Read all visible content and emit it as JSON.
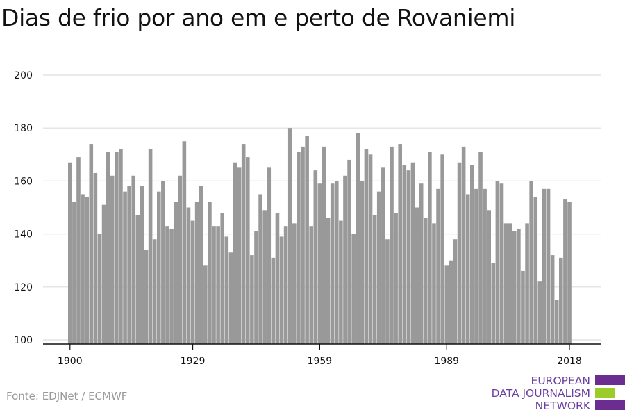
{
  "title": "Dias de frio por ano em e perto de Rovaniemi",
  "source": "Fonte: EDJNet / ECMWF",
  "brand": {
    "lines": [
      "EUROPEAN",
      "DATA JOURNALISM",
      "NETWORK"
    ],
    "colors": {
      "text": "#6b3fa0",
      "bar_purple": "#6b2d8f",
      "bar_green": "#9ccc2a"
    }
  },
  "colors": {
    "bars": "#999999",
    "grid": "#dddddd",
    "axis": "#111111"
  },
  "chart_data": {
    "type": "bar",
    "title": "Dias de frio por ano em e perto de Rovaniemi",
    "xlabel": "",
    "ylabel": "",
    "x": [
      1900,
      1901,
      1902,
      1903,
      1904,
      1905,
      1906,
      1907,
      1908,
      1909,
      1910,
      1911,
      1912,
      1913,
      1914,
      1915,
      1916,
      1917,
      1918,
      1919,
      1920,
      1921,
      1922,
      1923,
      1924,
      1925,
      1926,
      1927,
      1928,
      1929,
      1930,
      1931,
      1932,
      1933,
      1934,
      1935,
      1936,
      1937,
      1938,
      1939,
      1940,
      1941,
      1942,
      1943,
      1944,
      1945,
      1946,
      1947,
      1948,
      1949,
      1950,
      1951,
      1952,
      1953,
      1954,
      1955,
      1956,
      1957,
      1958,
      1959,
      1960,
      1961,
      1962,
      1963,
      1964,
      1965,
      1966,
      1967,
      1968,
      1969,
      1970,
      1971,
      1972,
      1973,
      1974,
      1975,
      1976,
      1977,
      1978,
      1979,
      1980,
      1981,
      1982,
      1983,
      1984,
      1985,
      1986,
      1987,
      1988,
      1989,
      1990,
      1991,
      1992,
      1993,
      1994,
      1995,
      1996,
      1997,
      1998,
      1999,
      2000,
      2001,
      2002,
      2003,
      2004,
      2005,
      2006,
      2007,
      2008,
      2009,
      2010,
      2011,
      2012,
      2013,
      2014,
      2015,
      2016,
      2017,
      2018
    ],
    "values": [
      167,
      152,
      169,
      155,
      154,
      174,
      163,
      140,
      151,
      171,
      162,
      171,
      172,
      156,
      158,
      162,
      147,
      158,
      134,
      172,
      138,
      156,
      160,
      143,
      142,
      152,
      162,
      175,
      150,
      145,
      152,
      158,
      128,
      152,
      143,
      143,
      148,
      139,
      133,
      167,
      165,
      174,
      169,
      132,
      141,
      155,
      149,
      165,
      131,
      148,
      139,
      143,
      180,
      144,
      171,
      173,
      177,
      143,
      164,
      159,
      173,
      146,
      159,
      160,
      145,
      162,
      168,
      140,
      178,
      160,
      172,
      170,
      147,
      156,
      165,
      138,
      173,
      148,
      174,
      166,
      164,
      167,
      150,
      159,
      146,
      171,
      144,
      157,
      170,
      128,
      130,
      138,
      167,
      173,
      155,
      166,
      157,
      171,
      157,
      149,
      129,
      160,
      159,
      144,
      144,
      141,
      142,
      126,
      144,
      160,
      154,
      122,
      157,
      157,
      132,
      115,
      131,
      153,
      152
    ],
    "xticks": [
      1900,
      1929,
      1959,
      1989,
      2018
    ],
    "yticks": [
      100,
      120,
      140,
      160,
      180,
      200
    ],
    "ylim": [
      100,
      200
    ],
    "grid": true
  }
}
